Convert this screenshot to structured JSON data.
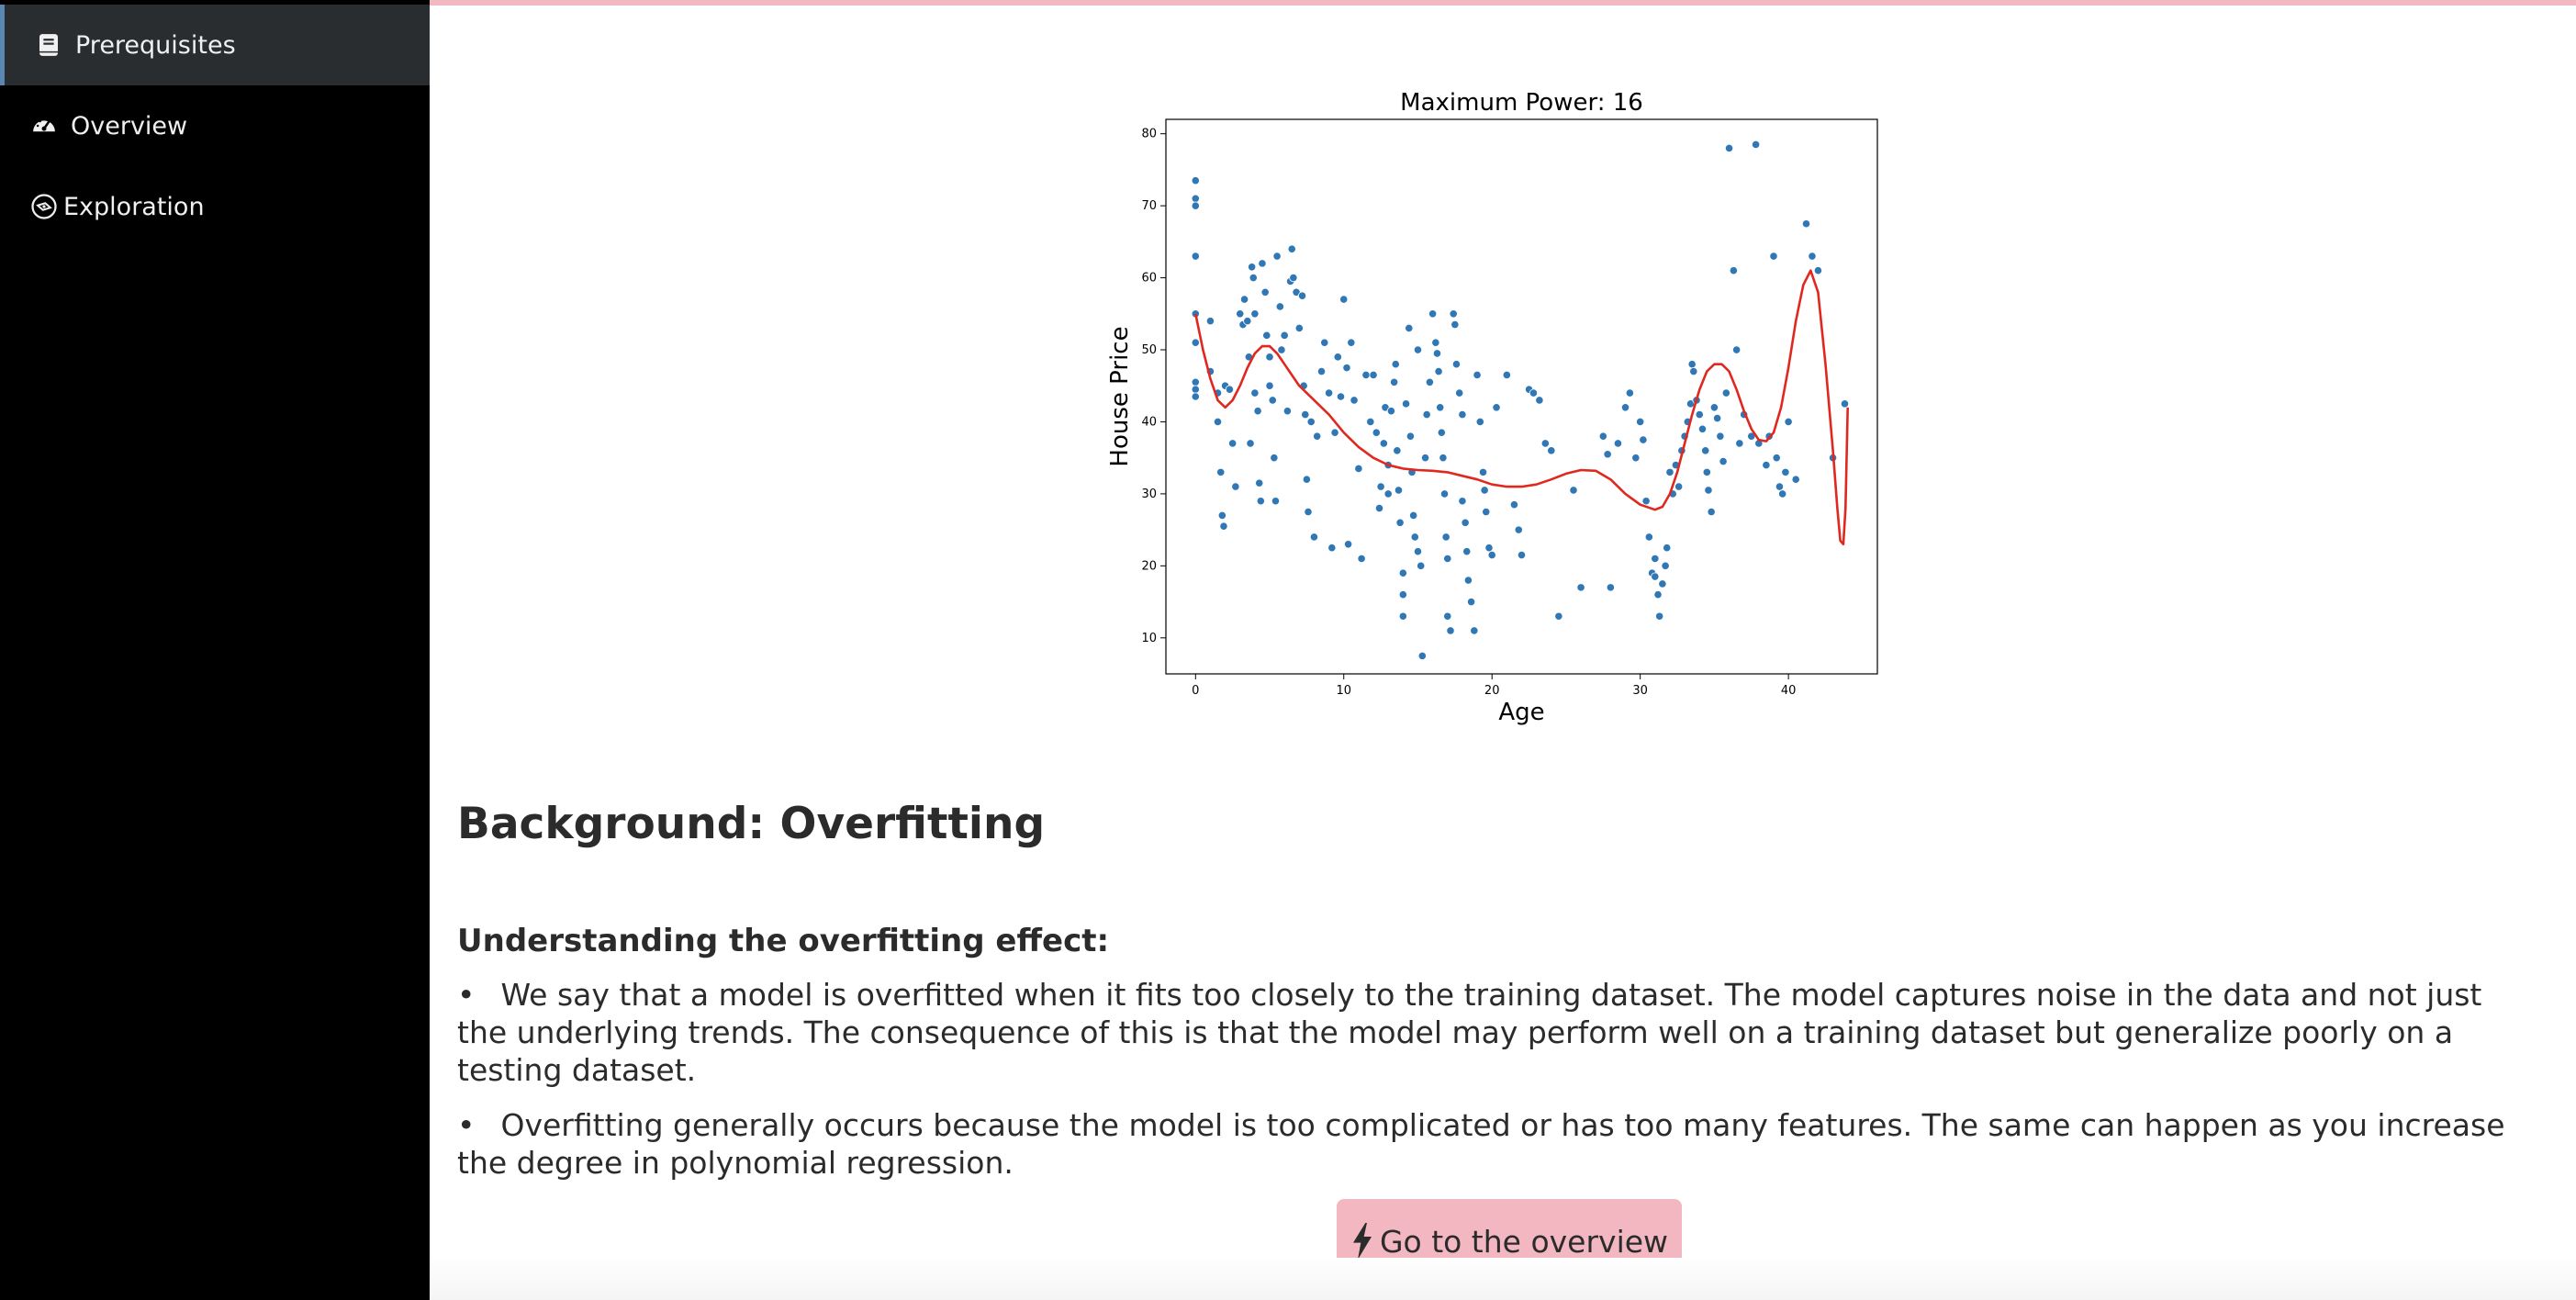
{
  "sidebar": {
    "items": [
      {
        "label": "Prerequisites",
        "icon": "book-icon",
        "active": true
      },
      {
        "label": "Overview",
        "icon": "speedometer-icon",
        "active": false
      },
      {
        "label": "Exploration",
        "icon": "compass-icon",
        "active": false
      }
    ]
  },
  "colors": {
    "accent": "#f3b7c1",
    "sidebar_bg": "#000000",
    "sidebar_active_bg": "#2a2d2f",
    "scatter": "#2f77b5",
    "fit_line": "#e0281f"
  },
  "content": {
    "heading": "Background: Overfitting",
    "subheading": "Understanding the overfitting effect:",
    "bullets": [
      "We say that a model is overfitted when it fits too closely to the training dataset. The model captures noise in the data and not just the underlying trends. The consequence of this is that the model may perform well on a training dataset but generalize poorly on a testing dataset.",
      "Overfitting generally occurs because the model is too complicated or has too many features. The same can happen as you increase the degree in polynomial regression."
    ],
    "button_label": "Go to the overview",
    "button_icon": "lightning-icon"
  },
  "chart_data": {
    "type": "scatter",
    "title": "Maximum Power: 16",
    "xlabel": "Age",
    "ylabel": "House Price",
    "xlim": [
      -2,
      46
    ],
    "ylim": [
      5,
      82
    ],
    "xticks": [
      0,
      10,
      20,
      30,
      40
    ],
    "yticks": [
      10,
      20,
      30,
      40,
      50,
      60,
      70,
      80
    ],
    "grid": false,
    "series": [
      {
        "kind": "scatter",
        "points": [
          [
            0,
            73.5
          ],
          [
            0,
            71
          ],
          [
            0,
            70
          ],
          [
            0,
            63
          ],
          [
            0,
            55
          ],
          [
            0,
            51
          ],
          [
            0,
            45.5
          ],
          [
            0,
            44.5
          ],
          [
            0,
            43.5
          ],
          [
            1,
            54
          ],
          [
            1,
            47
          ],
          [
            1.5,
            44
          ],
          [
            1.5,
            40
          ],
          [
            1.7,
            33
          ],
          [
            1.8,
            27
          ],
          [
            1.9,
            25.5
          ],
          [
            2,
            45
          ],
          [
            2.3,
            44.5
          ],
          [
            2.5,
            37
          ],
          [
            2.7,
            31
          ],
          [
            3,
            55
          ],
          [
            3.2,
            53.5
          ],
          [
            3.3,
            57
          ],
          [
            3.5,
            54
          ],
          [
            3.6,
            49
          ],
          [
            3.7,
            37
          ],
          [
            3.8,
            61.5
          ],
          [
            3.9,
            60
          ],
          [
            4,
            55
          ],
          [
            4,
            44
          ],
          [
            4.2,
            41.5
          ],
          [
            4.3,
            31.5
          ],
          [
            4.4,
            29
          ],
          [
            4.5,
            62
          ],
          [
            4.7,
            58
          ],
          [
            4.8,
            52
          ],
          [
            5,
            49
          ],
          [
            5,
            45
          ],
          [
            5.2,
            43
          ],
          [
            5.3,
            35
          ],
          [
            5.4,
            29
          ],
          [
            5.5,
            63
          ],
          [
            5.7,
            56
          ],
          [
            5.8,
            50
          ],
          [
            6,
            52
          ],
          [
            6.2,
            41.5
          ],
          [
            6.4,
            59.5
          ],
          [
            6.5,
            64
          ],
          [
            6.6,
            60
          ],
          [
            6.8,
            58
          ],
          [
            7,
            53
          ],
          [
            7.2,
            57.5
          ],
          [
            7.3,
            45
          ],
          [
            7.4,
            41
          ],
          [
            7.5,
            32
          ],
          [
            7.6,
            27.5
          ],
          [
            7.8,
            40
          ],
          [
            8,
            24
          ],
          [
            8.2,
            38
          ],
          [
            8.5,
            47
          ],
          [
            8.7,
            51
          ],
          [
            9,
            44
          ],
          [
            9.2,
            22.5
          ],
          [
            9.4,
            38.5
          ],
          [
            9.6,
            49
          ],
          [
            9.8,
            43.5
          ],
          [
            10,
            57
          ],
          [
            10.2,
            47.5
          ],
          [
            10.3,
            23
          ],
          [
            10.5,
            51
          ],
          [
            10.7,
            43
          ],
          [
            11,
            33.5
          ],
          [
            11.2,
            21
          ],
          [
            11.5,
            46.5
          ],
          [
            11.8,
            40
          ],
          [
            12,
            46.5
          ],
          [
            12.2,
            38.5
          ],
          [
            12.4,
            28
          ],
          [
            12.5,
            31
          ],
          [
            12.7,
            37
          ],
          [
            12.8,
            42
          ],
          [
            13,
            30
          ],
          [
            13,
            34
          ],
          [
            13.2,
            41.5
          ],
          [
            13.4,
            45.5
          ],
          [
            13.5,
            48
          ],
          [
            13.6,
            36
          ],
          [
            13.7,
            30.5
          ],
          [
            13.8,
            26
          ],
          [
            14,
            19
          ],
          [
            14,
            16
          ],
          [
            14,
            13
          ],
          [
            14.2,
            42.5
          ],
          [
            14.4,
            53
          ],
          [
            14.5,
            38
          ],
          [
            14.6,
            33
          ],
          [
            14.7,
            27
          ],
          [
            14.8,
            24
          ],
          [
            15,
            50
          ],
          [
            15,
            22
          ],
          [
            15.2,
            20
          ],
          [
            15.3,
            7.5
          ],
          [
            15.5,
            35
          ],
          [
            15.6,
            41
          ],
          [
            15.8,
            45.5
          ],
          [
            16,
            55
          ],
          [
            16.2,
            51
          ],
          [
            16.3,
            49.5
          ],
          [
            16.4,
            47
          ],
          [
            16.5,
            42
          ],
          [
            16.6,
            38.5
          ],
          [
            16.7,
            35
          ],
          [
            16.8,
            30
          ],
          [
            16.9,
            24
          ],
          [
            17,
            21
          ],
          [
            17,
            13
          ],
          [
            17.2,
            11
          ],
          [
            17.4,
            55
          ],
          [
            17.5,
            53.5
          ],
          [
            17.6,
            48
          ],
          [
            17.8,
            44
          ],
          [
            18,
            41
          ],
          [
            18,
            29
          ],
          [
            18.2,
            26
          ],
          [
            18.3,
            22
          ],
          [
            18.4,
            18
          ],
          [
            18.6,
            15
          ],
          [
            18.8,
            11
          ],
          [
            19,
            46.5
          ],
          [
            19.2,
            40
          ],
          [
            19.4,
            33
          ],
          [
            19.5,
            30.5
          ],
          [
            19.6,
            27.5
          ],
          [
            19.8,
            22.5
          ],
          [
            20,
            21.5
          ],
          [
            20.3,
            42
          ],
          [
            21,
            46.5
          ],
          [
            21.5,
            28.5
          ],
          [
            21.8,
            25
          ],
          [
            22,
            21.5
          ],
          [
            22.5,
            44.5
          ],
          [
            22.8,
            44
          ],
          [
            23.2,
            43
          ],
          [
            23.6,
            37
          ],
          [
            24,
            36
          ],
          [
            24.5,
            13
          ],
          [
            25.5,
            30.5
          ],
          [
            26,
            17
          ],
          [
            27.5,
            38
          ],
          [
            27.8,
            35.5
          ],
          [
            28,
            17
          ],
          [
            28.5,
            37
          ],
          [
            29,
            42
          ],
          [
            29.3,
            44
          ],
          [
            29.7,
            35
          ],
          [
            30,
            40
          ],
          [
            30.2,
            37.5
          ],
          [
            30.4,
            29
          ],
          [
            30.6,
            24
          ],
          [
            30.8,
            19
          ],
          [
            31,
            21
          ],
          [
            31,
            18.5
          ],
          [
            31.2,
            16
          ],
          [
            31.3,
            13
          ],
          [
            31.5,
            17.5
          ],
          [
            31.7,
            20
          ],
          [
            31.8,
            22.5
          ],
          [
            32,
            33
          ],
          [
            32.2,
            30
          ],
          [
            32.4,
            34
          ],
          [
            32.6,
            31
          ],
          [
            32.8,
            36
          ],
          [
            33,
            38
          ],
          [
            33.2,
            40
          ],
          [
            33.4,
            42.5
          ],
          [
            33.5,
            48
          ],
          [
            33.6,
            47
          ],
          [
            33.8,
            43
          ],
          [
            34,
            41
          ],
          [
            34.2,
            39
          ],
          [
            34.4,
            36
          ],
          [
            34.5,
            33
          ],
          [
            34.6,
            30.5
          ],
          [
            34.8,
            27.5
          ],
          [
            35,
            42
          ],
          [
            35.2,
            40.5
          ],
          [
            35.4,
            38
          ],
          [
            35.6,
            34.5
          ],
          [
            35.8,
            44
          ],
          [
            36,
            78
          ],
          [
            36.3,
            61
          ],
          [
            36.5,
            50
          ],
          [
            36.7,
            37
          ],
          [
            37,
            41
          ],
          [
            37.5,
            38
          ],
          [
            37.8,
            78.5
          ],
          [
            38,
            37
          ],
          [
            38.5,
            34
          ],
          [
            38.7,
            38
          ],
          [
            39,
            63
          ],
          [
            39.2,
            35
          ],
          [
            39.4,
            31
          ],
          [
            39.6,
            30
          ],
          [
            39.8,
            33
          ],
          [
            40,
            40
          ],
          [
            40.5,
            32
          ],
          [
            41.2,
            67.5
          ],
          [
            41.6,
            63
          ],
          [
            42,
            61
          ],
          [
            43,
            35
          ],
          [
            43.8,
            42.5
          ]
        ]
      },
      {
        "kind": "line",
        "points": [
          [
            0,
            55
          ],
          [
            0.5,
            50
          ],
          [
            1,
            46
          ],
          [
            1.5,
            43
          ],
          [
            2,
            42
          ],
          [
            2.5,
            43
          ],
          [
            3,
            45
          ],
          [
            3.5,
            47.5
          ],
          [
            4,
            49.5
          ],
          [
            4.5,
            50.5
          ],
          [
            5,
            50.5
          ],
          [
            5.5,
            49.5
          ],
          [
            6,
            48
          ],
          [
            6.5,
            46.5
          ],
          [
            7,
            45
          ],
          [
            7.5,
            44
          ],
          [
            8,
            43
          ],
          [
            9,
            41
          ],
          [
            10,
            38.5
          ],
          [
            11,
            36.5
          ],
          [
            12,
            35
          ],
          [
            13,
            34
          ],
          [
            14,
            33.5
          ],
          [
            15,
            33.3
          ],
          [
            16,
            33.2
          ],
          [
            17,
            33
          ],
          [
            18,
            32.5
          ],
          [
            19,
            32
          ],
          [
            20,
            31.3
          ],
          [
            21,
            31
          ],
          [
            22,
            31
          ],
          [
            23,
            31.3
          ],
          [
            24,
            32
          ],
          [
            25,
            32.8
          ],
          [
            26,
            33.3
          ],
          [
            27,
            33.2
          ],
          [
            28,
            32
          ],
          [
            29,
            30
          ],
          [
            30,
            28.5
          ],
          [
            31,
            27.8
          ],
          [
            31.5,
            28.2
          ],
          [
            32,
            30
          ],
          [
            32.5,
            33
          ],
          [
            33,
            37
          ],
          [
            33.5,
            41
          ],
          [
            34,
            44.5
          ],
          [
            34.5,
            47
          ],
          [
            35,
            48
          ],
          [
            35.5,
            48
          ],
          [
            36,
            47
          ],
          [
            36.5,
            44.5
          ],
          [
            37,
            41.5
          ],
          [
            37.5,
            39
          ],
          [
            38,
            37.5
          ],
          [
            38.5,
            37.3
          ],
          [
            39,
            38.5
          ],
          [
            39.5,
            42
          ],
          [
            40,
            47.5
          ],
          [
            40.5,
            54
          ],
          [
            41,
            59
          ],
          [
            41.5,
            61
          ],
          [
            42,
            58
          ],
          [
            42.5,
            48
          ],
          [
            43,
            36
          ],
          [
            43.3,
            28
          ],
          [
            43.5,
            23.5
          ],
          [
            43.7,
            23
          ],
          [
            43.85,
            28
          ],
          [
            44,
            42
          ]
        ]
      }
    ]
  }
}
